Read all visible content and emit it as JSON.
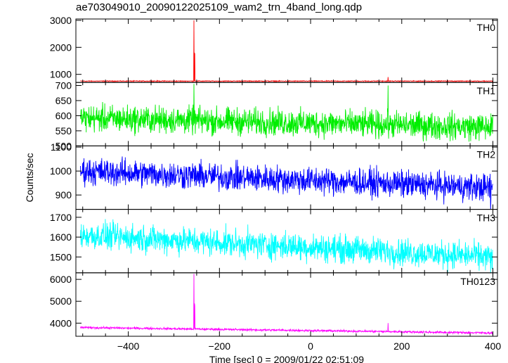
{
  "chart_data": {
    "type": "line",
    "title": "ae703049010_20090122025109_wam2_trn_4band_long.qdp",
    "xlabel": "Time [sec] 0 = 2009/01/22 02:51:09",
    "ylabel": "Counts/sec",
    "xlim": [
      -515,
      410
    ],
    "xticks": [
      -400,
      -200,
      0,
      200,
      400
    ],
    "xtick_labels": [
      "−400",
      "−200",
      "0",
      "200",
      "400"
    ],
    "panels": [
      {
        "name": "TH0",
        "color": "#ff0000",
        "ylim": [
          700,
          3050
        ],
        "yticks": [
          1000,
          2000,
          3000
        ],
        "baseline": 750,
        "noise": 18,
        "trend": 0,
        "spikes": [
          [
            -256,
            3000
          ],
          [
            -255,
            1800
          ],
          [
            -254,
            1750
          ],
          [
            170,
            900
          ]
        ]
      },
      {
        "name": "TH1",
        "color": "#00ee00",
        "ylim": [
          500,
          710
        ],
        "yticks": [
          500,
          550,
          600,
          650,
          700
        ],
        "baseline": 592,
        "noise": 55,
        "trend": -30,
        "spikes": [
          [
            -256,
            705
          ],
          [
            170,
            700
          ]
        ]
      },
      {
        "name": "TH2",
        "color": "#0000ff",
        "ylim": [
          840,
          1105
        ],
        "yticks": [
          900,
          1000,
          1100
        ],
        "baseline": 1000,
        "noise": 70,
        "trend": -70,
        "spikes": [
          [
            395,
            830
          ]
        ]
      },
      {
        "name": "TH3",
        "color": "#00ffff",
        "ylim": [
          1420,
          1740
        ],
        "yticks": [
          1500,
          1600,
          1700
        ],
        "baseline": 1610,
        "noise": 85,
        "trend": -110,
        "spikes": [
          [
            395,
            1410
          ]
        ]
      },
      {
        "name": "TH0123",
        "color": "#ff00ff",
        "ylim": [
          3400,
          6300
        ],
        "yticks": [
          4000,
          5000,
          6000
        ],
        "baseline": 3800,
        "noise": 60,
        "trend": -250,
        "spikes": [
          [
            -256,
            6250
          ],
          [
            -255,
            4900
          ],
          [
            -254,
            4800
          ],
          [
            170,
            4000
          ]
        ]
      }
    ]
  }
}
